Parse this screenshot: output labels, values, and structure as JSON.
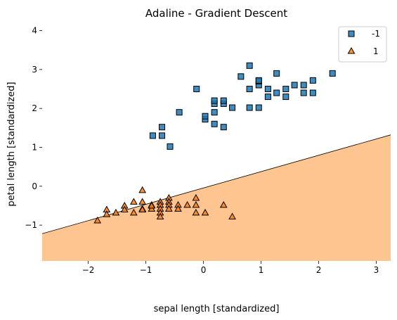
{
  "chart_data": {
    "type": "scatter",
    "title": "Adaline - Gradient Descent",
    "xlabel": "sepal length [standardized]",
    "ylabel": "petal length [standardized]",
    "xlim": [
      -2.8,
      3.25
    ],
    "ylim": [
      -1.92,
      4.1
    ],
    "xticks": [
      -2,
      -1,
      0,
      1,
      2,
      3
    ],
    "yticks": [
      -1,
      0,
      1,
      2,
      3,
      4
    ],
    "legend_position": "top-right",
    "decision_boundary": {
      "x": [
        -2.8,
        3.25
      ],
      "y": [
        -1.22,
        1.32
      ]
    },
    "regions": [
      {
        "label": "1",
        "side": "below",
        "color": "#ffc590"
      },
      {
        "label": "-1",
        "side": "above",
        "color": "#ffffff"
      }
    ],
    "series": [
      {
        "name": "-1",
        "marker": "square",
        "color": "#1f77b4",
        "points": [
          [
            -0.88,
            1.3
          ],
          [
            -0.72,
            1.3
          ],
          [
            -0.72,
            1.52
          ],
          [
            -0.58,
            1.02
          ],
          [
            -0.42,
            1.9
          ],
          [
            -0.12,
            2.5
          ],
          [
            0.03,
            1.72
          ],
          [
            0.03,
            1.8
          ],
          [
            0.19,
            1.6
          ],
          [
            0.19,
            1.9
          ],
          [
            0.19,
            2.12
          ],
          [
            0.19,
            2.2
          ],
          [
            0.35,
            1.52
          ],
          [
            0.35,
            2.12
          ],
          [
            0.35,
            2.2
          ],
          [
            0.5,
            2.02
          ],
          [
            0.65,
            2.82
          ],
          [
            0.8,
            2.02
          ],
          [
            0.8,
            2.5
          ],
          [
            0.8,
            3.1
          ],
          [
            0.96,
            2.02
          ],
          [
            0.96,
            2.6
          ],
          [
            0.96,
            2.7
          ],
          [
            0.96,
            2.72
          ],
          [
            1.12,
            2.3
          ],
          [
            1.12,
            2.5
          ],
          [
            1.27,
            2.4
          ],
          [
            1.27,
            2.9
          ],
          [
            1.43,
            2.3
          ],
          [
            1.43,
            2.5
          ],
          [
            1.58,
            2.6
          ],
          [
            1.74,
            2.4
          ],
          [
            1.74,
            2.6
          ],
          [
            1.9,
            2.4
          ],
          [
            1.9,
            2.72
          ],
          [
            2.24,
            2.9
          ]
        ]
      },
      {
        "name": "1",
        "marker": "triangle",
        "color": "#ff7f0e",
        "points": [
          [
            -1.84,
            -0.88
          ],
          [
            -1.68,
            -0.6
          ],
          [
            -1.68,
            -0.72
          ],
          [
            -1.52,
            -0.68
          ],
          [
            -1.37,
            -0.5
          ],
          [
            -1.37,
            -0.6
          ],
          [
            -1.21,
            -0.4
          ],
          [
            -1.21,
            -0.68
          ],
          [
            -1.06,
            -0.1
          ],
          [
            -1.06,
            -0.4
          ],
          [
            -1.06,
            -0.58
          ],
          [
            -1.06,
            -0.6
          ],
          [
            -0.9,
            -0.48
          ],
          [
            -0.9,
            -0.58
          ],
          [
            -0.9,
            -0.5
          ],
          [
            -0.75,
            -0.4
          ],
          [
            -0.75,
            -0.48
          ],
          [
            -0.75,
            -0.58
          ],
          [
            -0.75,
            -0.68
          ],
          [
            -0.75,
            -0.78
          ],
          [
            -0.6,
            -0.3
          ],
          [
            -0.6,
            -0.4
          ],
          [
            -0.6,
            -0.48
          ],
          [
            -0.6,
            -0.58
          ],
          [
            -0.44,
            -0.48
          ],
          [
            -0.44,
            -0.58
          ],
          [
            -0.28,
            -0.48
          ],
          [
            -0.13,
            -0.3
          ],
          [
            -0.13,
            -0.48
          ],
          [
            -0.13,
            -0.68
          ],
          [
            0.03,
            -0.68
          ],
          [
            0.35,
            -0.48
          ],
          [
            0.5,
            -0.78
          ]
        ]
      }
    ]
  }
}
